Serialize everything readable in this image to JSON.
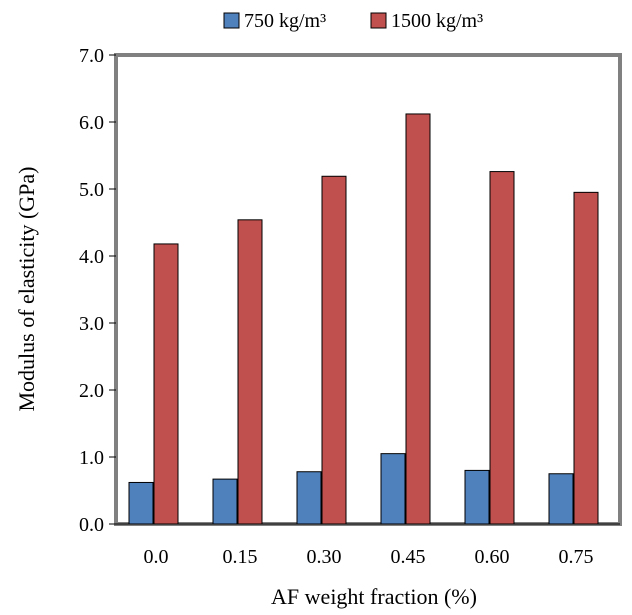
{
  "chart_data": {
    "type": "bar",
    "title": "",
    "xlabel": "AF weight fraction (%)",
    "ylabel": "Modulus of elasticity (GPa)",
    "categories": [
      "0.0",
      "0.15",
      "0.30",
      "0.45",
      "0.60",
      "0.75"
    ],
    "ylim": [
      0,
      7
    ],
    "yticks": [
      "0.0",
      "1.0",
      "2.0",
      "3.0",
      "4.0",
      "5.0",
      "6.0",
      "7.0"
    ],
    "grid": false,
    "legend_position": "top",
    "series": [
      {
        "name": "750 kg/m³",
        "color": "#4f81bd",
        "values": [
          0.62,
          0.67,
          0.78,
          1.05,
          0.8,
          0.75
        ]
      },
      {
        "name": "1500 kg/m³",
        "color": "#c0504d",
        "values": [
          4.18,
          4.54,
          5.19,
          6.12,
          5.26,
          4.95
        ]
      }
    ],
    "frame_color": "#808080"
  }
}
